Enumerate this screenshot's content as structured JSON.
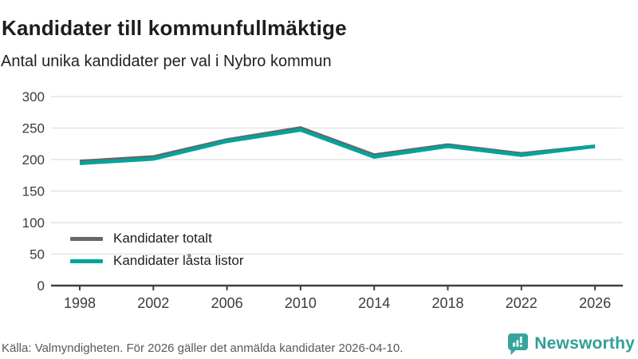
{
  "header": {
    "title": "Kandidater till kommunfullmäktige",
    "subtitle": "Antal unika kandidater per val i Nybro kommun"
  },
  "chart_data": {
    "type": "line",
    "x": [
      1998,
      2002,
      2006,
      2010,
      2014,
      2018,
      2022,
      2026
    ],
    "xlabel": "",
    "ylabel": "",
    "ylim": [
      0,
      300
    ],
    "ytick_interval": 50,
    "grid": "horizontal",
    "legend_position": "inside-bottom-left",
    "series": [
      {
        "name": "Kandidater totalt",
        "color": "#66686a",
        "values": [
          197,
          204,
          231,
          250,
          207,
          223,
          209,
          221
        ]
      },
      {
        "name": "Kandidater låsta listor",
        "color": "#00a49b",
        "values": [
          194,
          201,
          229,
          247,
          204,
          221,
          207,
          221
        ]
      }
    ]
  },
  "footer": {
    "source": "Källa: Valmyndigheten. För 2026 gäller det anmälda kandidater 2026-04-10.",
    "brand": "Newsworthy"
  },
  "colors": {
    "axis": "#3f3f3f",
    "tick_label": "#3c3c3c",
    "gridline": "#e4e4e4",
    "brand_icon": "#35a49d",
    "brand_text": "#2f9f98"
  }
}
